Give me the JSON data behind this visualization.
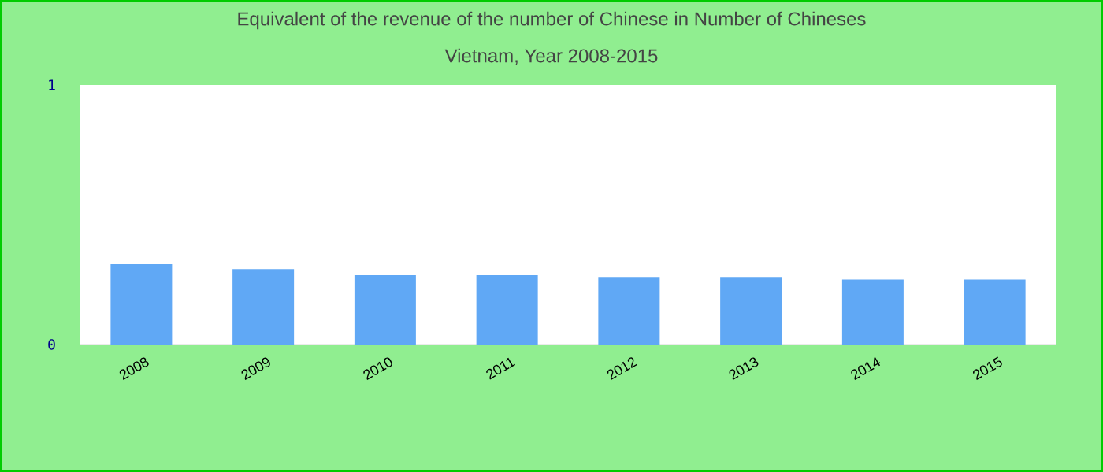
{
  "chart_data": {
    "type": "bar",
    "title": "Equivalent of the revenue of the number of Chinese  in Number of Chineses",
    "subtitle": "Vietnam, Year 2008-2015",
    "categories": [
      "2008",
      "2009",
      "2010",
      "2011",
      "2012",
      "2013",
      "2014",
      "2015"
    ],
    "values": [
      0.31,
      0.29,
      0.27,
      0.27,
      0.26,
      0.26,
      0.25,
      0.25
    ],
    "color": "#60a8f5",
    "ylim": [
      0,
      1
    ],
    "yticks": [
      0,
      1
    ]
  }
}
